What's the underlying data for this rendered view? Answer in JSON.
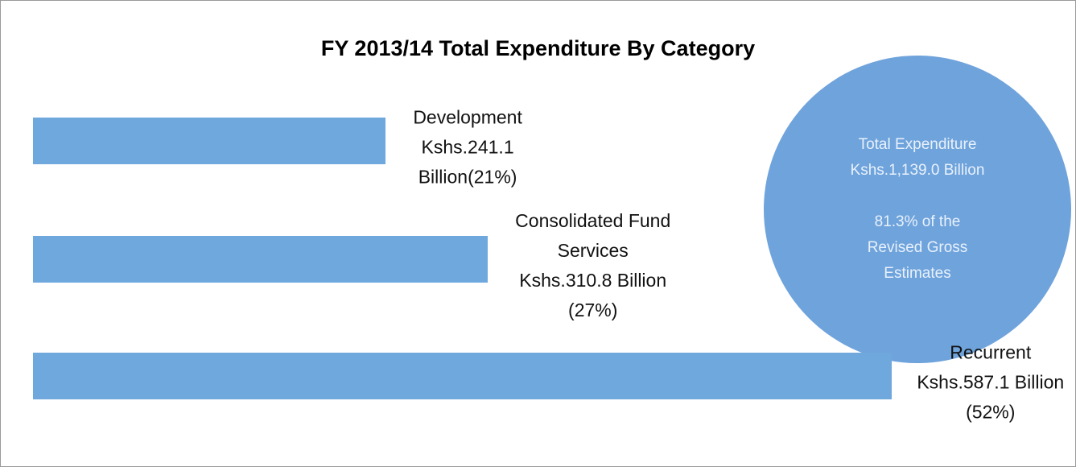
{
  "chart_data": {
    "type": "bar",
    "orientation": "horizontal",
    "title": "FY 2013/14 Total Expenditure By Category",
    "categories": [
      "Development",
      "Consolidated Fund Services",
      "Recurrent"
    ],
    "values": [
      241.1,
      310.8,
      587.1
    ],
    "value_labels": [
      "Kshs.241.1 Billion(21%)",
      "Kshs.310.8 Billion (27%)",
      "Kshs.587.1 Billion (52%)"
    ],
    "color": "#6fa8dc",
    "annotations": {
      "total": "Total Expenditure Kshs.1,139.0 Billion",
      "note": "81.3% of the Revised Gross Estimates"
    }
  }
}
